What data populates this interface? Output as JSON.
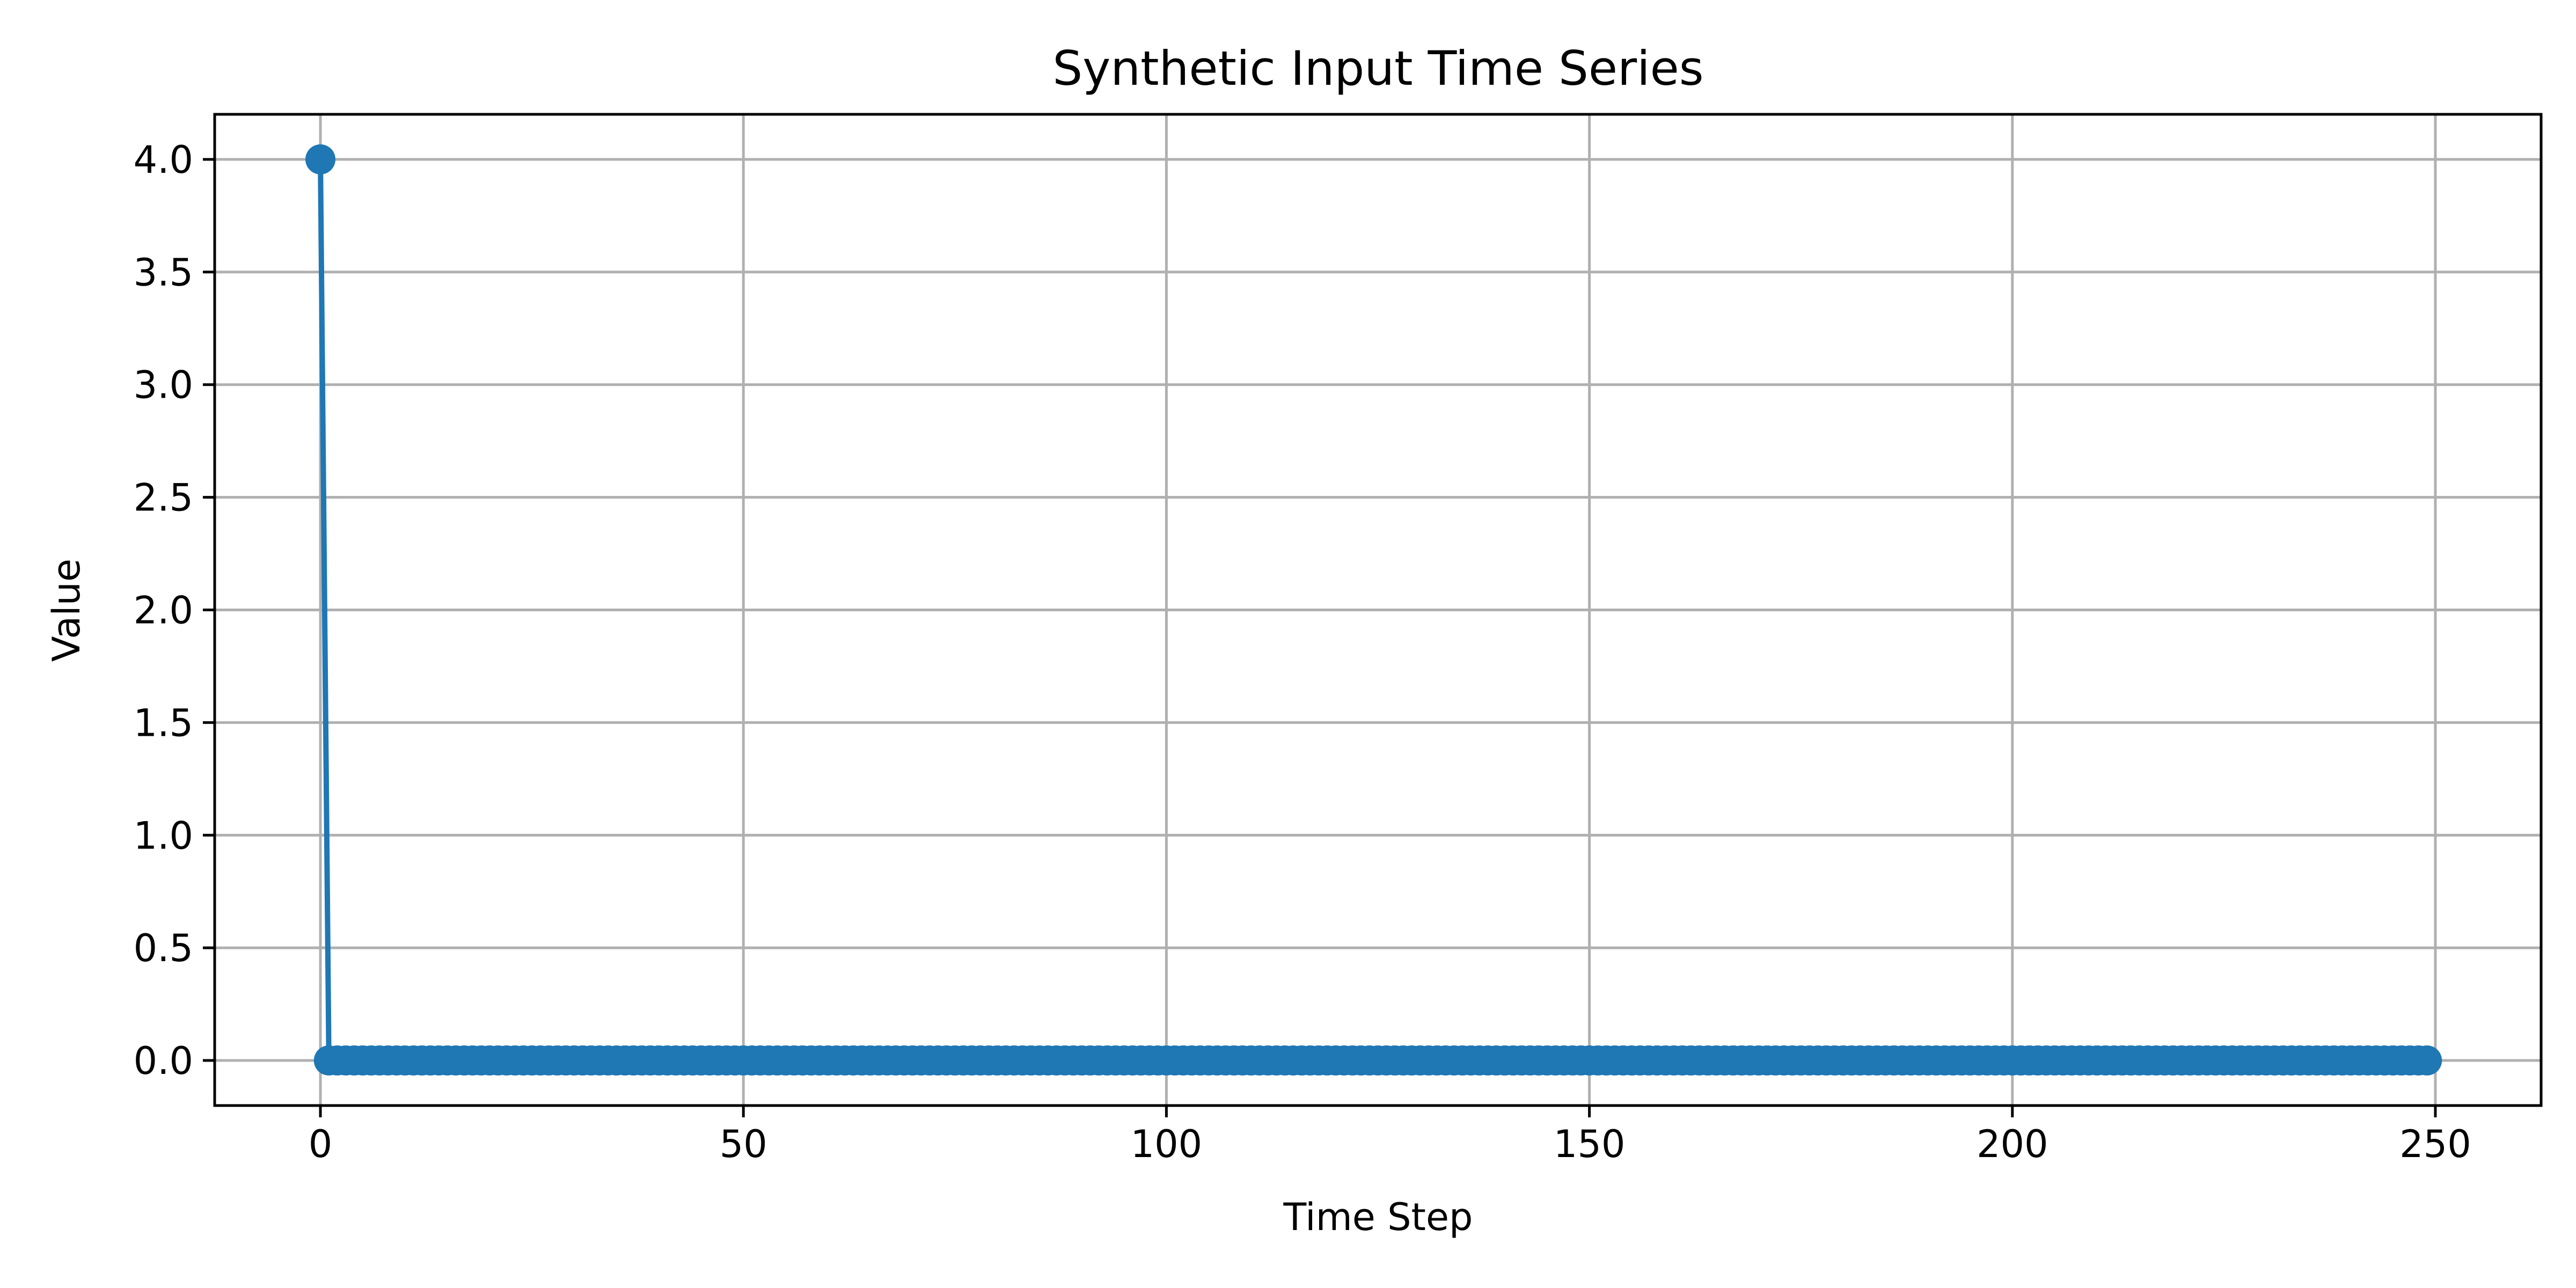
{
  "chart_data": {
    "type": "line",
    "title": "Synthetic Input Time Series",
    "xlabel": "Time Step",
    "ylabel": "Value",
    "xlim": [
      -12.5,
      262.5
    ],
    "ylim": [
      -0.2,
      4.2
    ],
    "xticks": [
      0,
      50,
      100,
      150,
      200,
      250
    ],
    "yticks": [
      0.0,
      0.5,
      1.0,
      1.5,
      2.0,
      2.5,
      3.0,
      3.5,
      4.0
    ],
    "xtick_labels": [
      "0",
      "50",
      "100",
      "150",
      "200",
      "250"
    ],
    "ytick_labels": [
      "0.0",
      "0.5",
      "1.0",
      "1.5",
      "2.0",
      "2.5",
      "3.0",
      "3.5",
      "4.0"
    ],
    "grid": true,
    "legend": "none",
    "series": [
      {
        "color": "#1f77b4",
        "marker": "circle",
        "x_start": 0,
        "x_end": 249,
        "x_step": 1,
        "values_note": "",
        "y_first": 4.0,
        "y_rest": 0.0
      }
    ]
  }
}
